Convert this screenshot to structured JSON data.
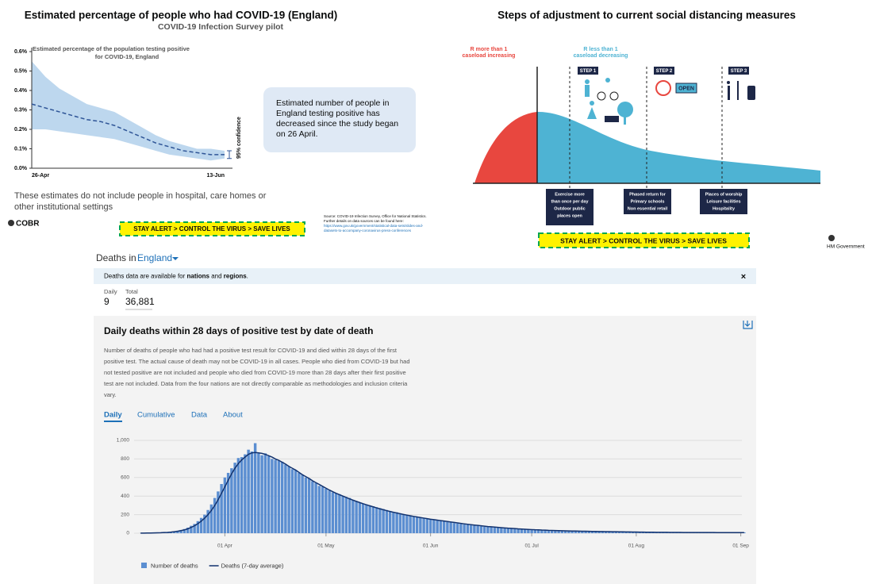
{
  "left_slide": {
    "title": "Estimated percentage of people who had COVID-19 (England)",
    "subtitle": "COVID-19 Infection Survey pilot",
    "callout": [
      "Estimated number of people in",
      "England testing positive has",
      "decreased since the study began",
      "on 26 April."
    ],
    "note": [
      "These estimates do not include people in hospital, care homes or",
      "other institutional settings"
    ],
    "logo": "COBR",
    "banner": "STAY ALERT > CONTROL THE VIRUS > SAVE LIVES",
    "source": [
      "Source: COVID-19 Infection Survey, Office for National Statistics.",
      "Further details on data sources can be found here:",
      "https://www.gov.uk/government/statistical-data-sets/slides-and-",
      "datasets-to-accompany-coronavirus-press-conferences"
    ]
  },
  "right_slide": {
    "title": "Steps of adjustment to current social distancing measures",
    "phase_red": [
      "R more than 1",
      "caseload increasing"
    ],
    "phase_blue": [
      "R less than 1",
      "caseload decreasing"
    ],
    "steps": [
      "STEP 1",
      "STEP 2",
      "STEP 3"
    ],
    "open_sign": "OPEN",
    "boxes": [
      [
        "Exercise more",
        "than once per day",
        "Outdoor public",
        "places open"
      ],
      [
        "Phased return for",
        "Primary schools",
        "Non essential retail"
      ],
      [
        "Places of worship",
        "Leisure facilities",
        "Hospitality"
      ]
    ],
    "banner": "STAY ALERT > CONTROL THE VIRUS > SAVE LIVES",
    "government": "HM Government"
  },
  "dashboard": {
    "heading": "Deaths in",
    "area": "England",
    "notice": [
      "Deaths data are available for ",
      "nations",
      " and ",
      "regions",
      "."
    ],
    "close": "×",
    "daily_label": "Daily",
    "daily_value": "9",
    "total_label": "Total",
    "total_value": "36,881",
    "card_title": "Daily deaths within 28 days of positive test by date of death",
    "description": [
      "Number of deaths of people who had had a positive test result for COVID-19 and died within 28 days of the first",
      "positive test. The actual cause of death may not be COVID-19 in all cases. People who died from COVID-19 but had",
      "not tested positive are not included and people who died from COVID-19 more than 28 days after their first positive",
      "test are not included. Data from the four nations are not directly comparable as methodologies and inclusion criteria",
      "vary."
    ],
    "tabs": [
      "Daily",
      "Cumulative",
      "Data",
      "About"
    ]
  },
  "chart_data": [
    {
      "type": "line",
      "title": [
        "Estimated percentage of the population testing positive",
        "for COVID-19, England"
      ],
      "categories": [
        "26-Apr",
        null,
        null,
        null,
        null,
        null,
        null,
        null,
        null,
        null,
        null,
        null,
        null,
        null,
        "13-Jun"
      ],
      "values": [
        0.33,
        0.31,
        0.29,
        0.27,
        0.25,
        0.24,
        0.22,
        0.19,
        0.16,
        0.13,
        0.11,
        0.09,
        0.08,
        0.07,
        0.07
      ],
      "color": "#2f5597",
      "band": {
        "upper": [
          0.55,
          0.47,
          0.41,
          0.37,
          0.33,
          0.31,
          0.29,
          0.25,
          0.21,
          0.17,
          0.14,
          0.12,
          0.1,
          0.1,
          0.09
        ],
        "lower": [
          0.2,
          0.2,
          0.19,
          0.18,
          0.17,
          0.16,
          0.15,
          0.13,
          0.11,
          0.09,
          0.07,
          0.06,
          0.05,
          0.04,
          0.05
        ],
        "color": "#bdd7ee",
        "label": "95% confidence"
      },
      "ylim": [
        0,
        0.6
      ],
      "yticks": [
        {
          "value": 0,
          "label": "0.0%"
        },
        {
          "value": 0.1,
          "label": "0.1%"
        },
        {
          "value": 0.2,
          "label": "0.2%"
        },
        {
          "value": 0.3,
          "label": "0.3%"
        },
        {
          "value": 0.4,
          "label": "0.4%"
        },
        {
          "value": 0.5,
          "label": "0.5%"
        },
        {
          "value": 0.6,
          "label": "0.6%"
        }
      ]
    },
    {
      "type": "bar",
      "categories": [
        null,
        null,
        null,
        null,
        null,
        null,
        null,
        null,
        null,
        null,
        null,
        null,
        null,
        null,
        null,
        null,
        null,
        null,
        null,
        null,
        null,
        null,
        null,
        null,
        null,
        "01 Apr",
        null,
        null,
        null,
        null,
        null,
        null,
        null,
        null,
        null,
        null,
        null,
        null,
        null,
        null,
        null,
        null,
        null,
        null,
        null,
        null,
        null,
        null,
        null,
        null,
        null,
        null,
        null,
        null,
        null,
        "01 May",
        null,
        null,
        null,
        null,
        null,
        null,
        null,
        null,
        null,
        null,
        null,
        null,
        null,
        null,
        null,
        null,
        null,
        null,
        null,
        null,
        null,
        null,
        null,
        null,
        null,
        null,
        null,
        null,
        null,
        null,
        "01 Jun",
        null,
        null,
        null,
        null,
        null,
        null,
        null,
        null,
        null,
        null,
        null,
        null,
        null,
        null,
        null,
        null,
        null,
        null,
        null,
        null,
        null,
        null,
        null,
        null,
        null,
        null,
        null,
        null,
        null,
        "01 Jul",
        null,
        null,
        null,
        null,
        null,
        null,
        null,
        null,
        null,
        null,
        null,
        null,
        null,
        null,
        null,
        null,
        null,
        null,
        null,
        null,
        null,
        null,
        null,
        null,
        null,
        null,
        null,
        null,
        null,
        null,
        "01 Aug",
        null,
        null,
        null,
        null,
        null,
        null,
        null,
        null,
        null,
        null,
        null,
        null,
        null,
        null,
        null,
        null,
        null,
        null,
        null,
        null,
        null,
        null,
        null,
        null,
        null,
        null,
        null,
        null,
        null,
        null,
        "01 Sep",
        null
      ],
      "series": [
        {
          "name": "Number of deaths",
          "color": "#5b8ed1",
          "values": [
            1,
            1,
            2,
            3,
            2,
            5,
            6,
            8,
            10,
            15,
            20,
            26,
            35,
            45,
            60,
            80,
            100,
            130,
            165,
            200,
            250,
            310,
            380,
            450,
            530,
            600,
            650,
            700,
            760,
            810,
            820,
            850,
            900,
            880,
            970,
            860,
            840,
            860,
            830,
            800,
            790,
            780,
            770,
            740,
            720,
            690,
            680,
            650,
            630,
            600,
            590,
            560,
            540,
            510,
            500,
            480,
            460,
            440,
            430,
            420,
            400,
            390,
            380,
            360,
            345,
            330,
            320,
            310,
            300,
            290,
            280,
            270,
            260,
            250,
            240,
            230,
            225,
            215,
            205,
            195,
            190,
            180,
            175,
            170,
            160,
            155,
            150,
            145,
            140,
            135,
            130,
            120,
            115,
            110,
            105,
            100,
            95,
            90,
            85,
            82,
            80,
            75,
            70,
            68,
            65,
            62,
            60,
            58,
            55,
            52,
            50,
            48,
            46,
            44,
            42,
            40,
            38,
            36,
            35,
            34,
            32,
            30,
            30,
            28,
            27,
            26,
            25,
            24,
            23,
            22,
            22,
            21,
            20,
            20,
            19,
            18,
            18,
            17,
            17,
            16,
            16,
            15,
            15,
            14,
            14,
            13,
            13,
            12,
            12,
            11,
            11,
            11,
            10,
            10,
            10,
            10,
            9,
            9,
            9,
            9,
            8,
            8,
            8,
            8,
            8,
            7,
            7,
            7,
            7,
            7,
            6,
            6,
            6,
            6,
            6,
            6,
            5,
            5,
            6,
            9
          ]
        },
        {
          "name": "Deaths (7-day average)",
          "color": "#12326e",
          "type": "line",
          "values": [
            1,
            1,
            2,
            2,
            3,
            4,
            5,
            7,
            9,
            12,
            16,
            21,
            28,
            36,
            47,
            62,
            80,
            103,
            130,
            162,
            200,
            245,
            298,
            360,
            430,
            500,
            570,
            640,
            700,
            750,
            790,
            820,
            850,
            865,
            870,
            865,
            860,
            850,
            835,
            820,
            800,
            785,
            765,
            745,
            720,
            700,
            680,
            655,
            630,
            610,
            590,
            565,
            545,
            525,
            505,
            485,
            465,
            447,
            430,
            415,
            400,
            385,
            370,
            356,
            343,
            330,
            318,
            306,
            295,
            284,
            273,
            263,
            253,
            243,
            234,
            226,
            218,
            210,
            202,
            195,
            188,
            181,
            175,
            169,
            163,
            157,
            151,
            146,
            141,
            136,
            131,
            126,
            121,
            116,
            111,
            106,
            101,
            96,
            92,
            88,
            84,
            80,
            76,
            72,
            69,
            66,
            63,
            60,
            57,
            54,
            52,
            50,
            47,
            45,
            43,
            41,
            39,
            37,
            36,
            34,
            33,
            31,
            30,
            29,
            28,
            27,
            26,
            25,
            24,
            23,
            22,
            21,
            21,
            20,
            19,
            19,
            18,
            18,
            17,
            17,
            16,
            16,
            15,
            15,
            14,
            14,
            13,
            13,
            12,
            12,
            11,
            11,
            11,
            10,
            10,
            10,
            10,
            9,
            9,
            9,
            9,
            8,
            8,
            8,
            8,
            8,
            7,
            7,
            7,
            7,
            7,
            6,
            6,
            6,
            6,
            6,
            6,
            6,
            6,
            6
          ]
        }
      ],
      "ylim": [
        0,
        1000
      ],
      "yticks": [
        0,
        200,
        400,
        600,
        800,
        {
          "value": 1000,
          "label": "1,000"
        }
      ],
      "grid": true
    }
  ]
}
